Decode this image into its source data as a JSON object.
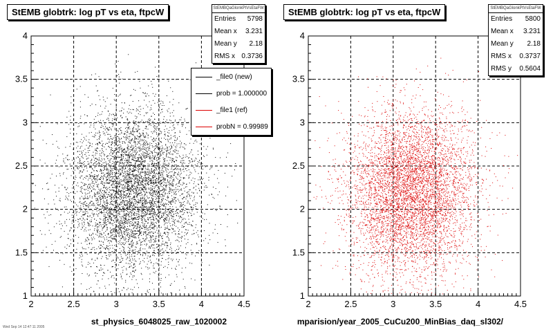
{
  "colors": {
    "reference": "#000000",
    "comparison": "#dd0000"
  },
  "chart_data": [
    {
      "type": "scatter",
      "title": "StEMB globtrk: log pT vs eta, ftpcW",
      "xlabel": "st_physics_6048025_raw_1020002",
      "ylabel": "",
      "xlim": [
        2,
        4.5
      ],
      "ylim": [
        1,
        4
      ],
      "xticks": [
        "2",
        "2.5",
        "3",
        "3.5",
        "4",
        "4.5"
      ],
      "yticks": [
        "1",
        "1.5",
        "2",
        "2.5",
        "3",
        "3.5",
        "4"
      ],
      "grid": true,
      "marker_color": "#000000",
      "distribution": {
        "center_x": 3.2,
        "center_y": 2.2,
        "rms_x": 0.3736,
        "rms_y": 0.56,
        "n_points": 5798
      },
      "stats": {
        "name": "StEMBQaGlonkPtVsEtaFW",
        "entries_label": "Entries",
        "entries": "5798",
        "mean_x_label": "Mean x",
        "mean_x": "3.231",
        "mean_y_label": "Mean y",
        "mean_y": "2.18",
        "rms_x_label": "RMS x",
        "rms_x": "0.3736"
      },
      "legend": {
        "placement": "top-right",
        "entries": [
          {
            "label": "_file0 (new)",
            "color": "#000000"
          },
          {
            "label": "prob = 1.000000",
            "color": "#000000"
          },
          {
            "label": "_file1 (ref)",
            "color": "#dd0000"
          },
          {
            "label": "probN = 0.99989",
            "color": "#dd0000"
          }
        ]
      }
    },
    {
      "type": "scatter",
      "title": "StEMB globtrk: log pT vs eta, ftpcW",
      "xlabel": "mparision/year_2005_CuCu200_MinBias_daq_sl302/",
      "ylabel": "",
      "xlim": [
        2,
        4.5
      ],
      "ylim": [
        1,
        4
      ],
      "xticks": [
        "2",
        "2.5",
        "3",
        "3.5",
        "4",
        "4.5"
      ],
      "yticks": [
        "1",
        "1.5",
        "2",
        "2.5",
        "3",
        "3.5",
        "4"
      ],
      "grid": true,
      "marker_color": "#dd0000",
      "distribution": {
        "center_x": 3.2,
        "center_y": 2.2,
        "rms_x": 0.3737,
        "rms_y": 0.5604,
        "n_points": 5800
      },
      "stats": {
        "name": "StEMBQaGlonkPtVsEtaFW",
        "entries_label": "Entries",
        "entries": "5800",
        "mean_x_label": "Mean x",
        "mean_x": "3.231",
        "mean_y_label": "Mean y",
        "mean_y": "2.18",
        "rms_x_label": "RMS x",
        "rms_x": "0.3737",
        "rms_y_label": "RMS y",
        "rms_y": "0.5604"
      }
    }
  ],
  "footer_note": "Wed Sep 14 12:47:11 2005"
}
